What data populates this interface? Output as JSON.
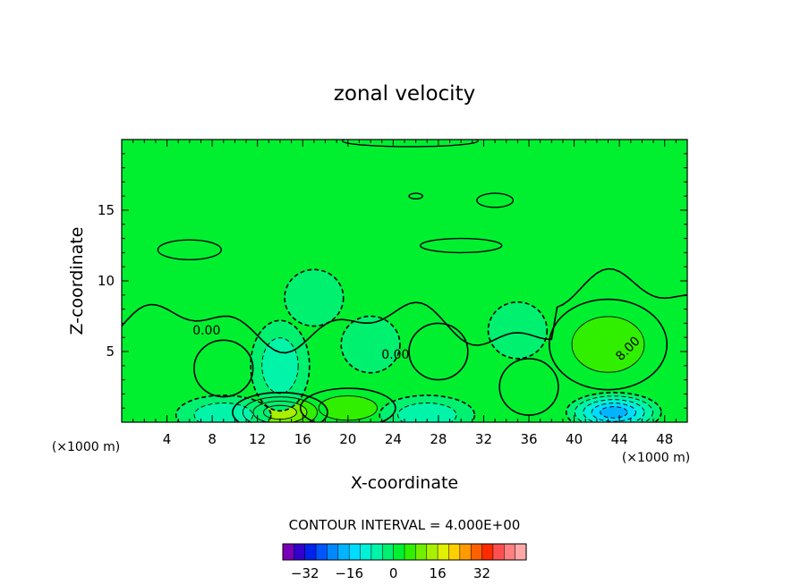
{
  "chart_data": {
    "type": "heatmap",
    "title": "zonal velocity",
    "xlabel": "X-coordinate",
    "ylabel": "Z-coordinate",
    "x_unit": "(×1000 m)",
    "xlim": [
      0,
      50
    ],
    "ylim": [
      0,
      20
    ],
    "x_ticks": [
      4,
      8,
      12,
      16,
      20,
      24,
      28,
      32,
      36,
      40,
      44,
      48
    ],
    "y_ticks": [
      5,
      10,
      15
    ],
    "contour_interval_text": "CONTOUR INTERVAL = 4.000E+00",
    "contour_interval": 4.0,
    "contour_labels": [
      "0.00",
      "0.00",
      "8.00"
    ],
    "colorbar": {
      "levels": [
        -36,
        -32,
        -28,
        -24,
        -20,
        -16,
        -12,
        -8,
        -4,
        0,
        4,
        8,
        12,
        16,
        20,
        24,
        28,
        32,
        36
      ],
      "tick_values": [
        -32,
        -16,
        0,
        16,
        32
      ],
      "tick_labels": [
        "−32",
        "−16",
        "0",
        "16",
        "32"
      ],
      "colors": [
        "#7a00b8",
        "#3300cc",
        "#0022ee",
        "#0055ff",
        "#0088ff",
        "#00b4ff",
        "#00dcff",
        "#00f0d8",
        "#00f5a8",
        "#00f070",
        "#00f030",
        "#30f000",
        "#70f000",
        "#a8f000",
        "#e0f000",
        "#ffd000",
        "#ff9a00",
        "#ff6000",
        "#ff2a00",
        "#ff5050",
        "#ff8080",
        "#ffa8a8"
      ]
    },
    "features": [
      {
        "type": "positive",
        "x": 43,
        "z": 5.5,
        "value": 9,
        "label": "8.00"
      },
      {
        "type": "positive",
        "x": 9,
        "z": 3.8,
        "value": 6
      },
      {
        "type": "positive",
        "x": 28,
        "z": 5.0,
        "value": 5
      },
      {
        "type": "positive",
        "x": 36,
        "z": 2.5,
        "value": 5
      },
      {
        "type": "positive",
        "x": 20,
        "z": 1.0,
        "value": 10
      },
      {
        "type": "positive",
        "x": 14,
        "z": 0.7,
        "value": 16
      },
      {
        "type": "negative",
        "x": 14,
        "z": 4.0,
        "value": -8
      },
      {
        "type": "negative",
        "x": 22,
        "z": 5.5,
        "value": -5
      },
      {
        "type": "negative",
        "x": 17,
        "z": 8.8,
        "value": -4
      },
      {
        "type": "negative",
        "x": 35,
        "z": 6.5,
        "value": -5
      },
      {
        "type": "negative",
        "x": 43.5,
        "z": 0.7,
        "value": -20
      },
      {
        "type": "negative",
        "x": 27,
        "z": 0.5,
        "value": -10
      },
      {
        "type": "negative",
        "x": 9,
        "z": 0.5,
        "value": -10
      }
    ]
  }
}
